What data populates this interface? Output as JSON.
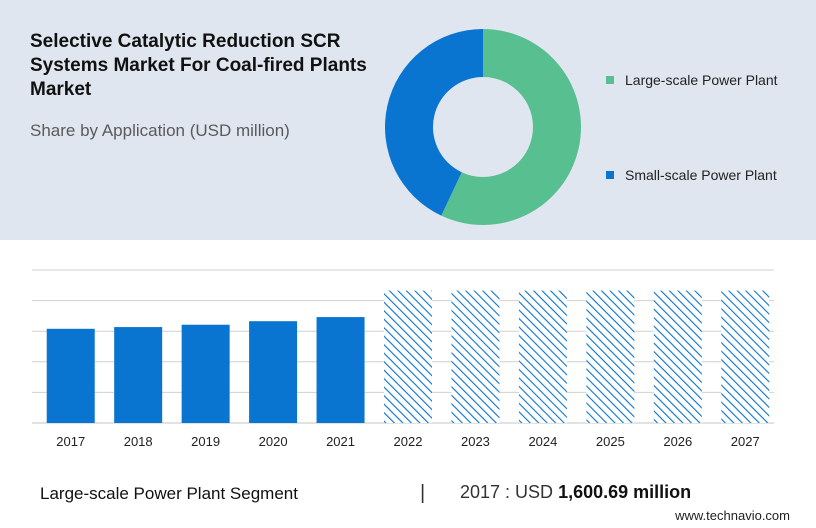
{
  "header": {
    "title": "Selective Catalytic Reduction SCR Systems Market For Coal-fired Plants Market",
    "subtitle": "Share by Application (USD million)"
  },
  "colors": {
    "large_scale": "#57bf90",
    "small_scale": "#0a74d1",
    "forecast_hatch": "#0a74d1",
    "panel_bg": "#dfe6f0",
    "grid": "#d0d0d0"
  },
  "legend": {
    "items": [
      {
        "label": "Large-scale Power Plant",
        "color": "#57bf90"
      },
      {
        "label": "Small-scale Power Plant",
        "color": "#0a74d1"
      }
    ]
  },
  "chart_data": [
    {
      "type": "pie",
      "style": "donut",
      "categories": [
        "Large-scale Power Plant",
        "Small-scale Power Plant"
      ],
      "values": [
        57,
        43
      ],
      "colors": [
        "#57bf90",
        "#0a74d1"
      ]
    },
    {
      "type": "bar",
      "categories": [
        "2017",
        "2018",
        "2019",
        "2020",
        "2021",
        "2022",
        "2023",
        "2024",
        "2025",
        "2026",
        "2027"
      ],
      "values": [
        1600.69,
        1630,
        1670,
        1730,
        1800,
        2250,
        2250,
        2250,
        2250,
        2250,
        2250
      ],
      "forecast_from": "2022",
      "forecast_style": "hatched",
      "ylim": [
        0,
        2600
      ],
      "grid": true,
      "color": "#0a74d1"
    }
  ],
  "footer": {
    "segment_label": "Large-scale Power Plant Segment",
    "separator": "|",
    "value_prefix": "2017 : USD ",
    "value_number": "1,600.69 million"
  },
  "brand": "www.technavio.com"
}
